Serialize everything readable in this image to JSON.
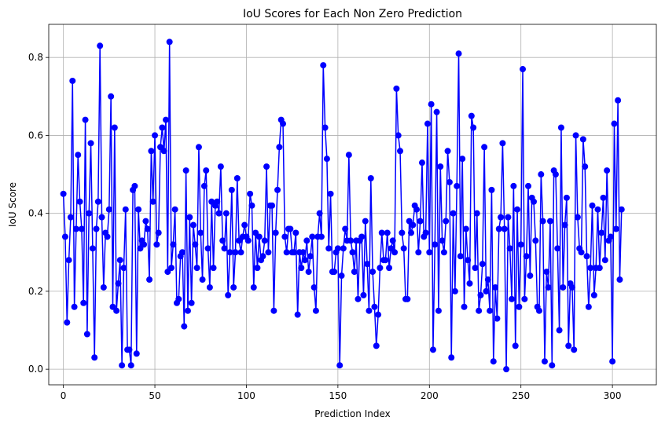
{
  "chart_data": {
    "type": "line",
    "title": "IoU Scores for Each Non Zero Prediction",
    "xlabel": "Prediction Index",
    "ylabel": "IoU Score",
    "xlim": [
      -8,
      324
    ],
    "ylim": [
      -0.04,
      0.885
    ],
    "xticks": [
      0,
      50,
      100,
      150,
      200,
      250,
      300
    ],
    "xtick_labels": [
      "0",
      "50",
      "100",
      "150",
      "200",
      "250",
      "300"
    ],
    "yticks": [
      0.0,
      0.2,
      0.4,
      0.6,
      0.8
    ],
    "ytick_labels": [
      "0.0",
      "0.2",
      "0.4",
      "0.6",
      "0.8"
    ],
    "grid": true,
    "marker": "circle",
    "color": "#0000ff",
    "series": [
      {
        "x_start": 0,
        "values": [
          0.45,
          0.34,
          0.12,
          0.28,
          0.39,
          0.74,
          0.16,
          0.36,
          0.55,
          0.43,
          0.36,
          0.17,
          0.64,
          0.09,
          0.4,
          0.58,
          0.31,
          0.03,
          0.36,
          0.43,
          0.83,
          0.39,
          0.21,
          0.35,
          0.34,
          0.41,
          0.7,
          0.16,
          0.62,
          0.15,
          0.22,
          0.28,
          0.01,
          0.26,
          0.41,
          0.05,
          0.05,
          0.01,
          0.46,
          0.47,
          0.04,
          0.41,
          0.31,
          0.33,
          0.32,
          0.38,
          0.36,
          0.23,
          0.56,
          0.43,
          0.6,
          0.32,
          0.35,
          0.57,
          0.62,
          0.56,
          0.64,
          0.25,
          0.84,
          0.26,
          0.32,
          0.41,
          0.17,
          0.18,
          0.29,
          0.3,
          0.11,
          0.51,
          0.15,
          0.39,
          0.17,
          0.37,
          0.32,
          0.26,
          0.57,
          0.35,
          0.23,
          0.47,
          0.51,
          0.31,
          0.21,
          0.43,
          0.26,
          0.42,
          0.43,
          0.4,
          0.52,
          0.33,
          0.31,
          0.4,
          0.19,
          0.3,
          0.46,
          0.21,
          0.3,
          0.49,
          0.33,
          0.3,
          0.34,
          0.37,
          0.34,
          0.33,
          0.45,
          0.42,
          0.21,
          0.35,
          0.26,
          0.34,
          0.28,
          0.29,
          0.33,
          0.52,
          0.3,
          0.42,
          0.42,
          0.15,
          0.35,
          0.46,
          0.57,
          0.64,
          0.63,
          0.34,
          0.3,
          0.36,
          0.36,
          0.3,
          0.3,
          0.35,
          0.14,
          0.3,
          0.26,
          0.3,
          0.28,
          0.33,
          0.25,
          0.29,
          0.34,
          0.21,
          0.15,
          0.34,
          0.4,
          0.34,
          0.78,
          0.62,
          0.54,
          0.31,
          0.45,
          0.25,
          0.25,
          0.3,
          0.31,
          0.01,
          0.24,
          0.31,
          0.36,
          0.33,
          0.55,
          0.33,
          0.3,
          0.25,
          0.33,
          0.18,
          0.33,
          0.34,
          0.19,
          0.38,
          0.27,
          0.15,
          0.49,
          0.25,
          0.16,
          0.06,
          0.14,
          0.26,
          0.35,
          0.28,
          0.28,
          0.35,
          0.26,
          0.31,
          0.33,
          0.3,
          0.72,
          0.6,
          0.56,
          0.35,
          0.31,
          0.18,
          0.18,
          0.38,
          0.35,
          0.37,
          0.42,
          0.41,
          0.3,
          0.38,
          0.53,
          0.34,
          0.35,
          0.63,
          0.3,
          0.68,
          0.05,
          0.32,
          0.66,
          0.15,
          0.52,
          0.33,
          0.3,
          0.38,
          0.56,
          0.48,
          0.03,
          0.4,
          0.2,
          0.47,
          0.81,
          0.29,
          0.54,
          0.16,
          0.36,
          0.28,
          0.22,
          0.65,
          0.62,
          0.26,
          0.4,
          0.15,
          0.19,
          0.27,
          0.57,
          0.2,
          0.23,
          0.15,
          0.46,
          0.02,
          0.21,
          0.13,
          0.36,
          0.39,
          0.58,
          0.36,
          0.0,
          0.39,
          0.31,
          0.18,
          0.47,
          0.06,
          0.41,
          0.16,
          0.32,
          0.77,
          0.18,
          0.29,
          0.47,
          0.24,
          0.44,
          0.43,
          0.33,
          0.16,
          0.15,
          0.5,
          0.38,
          0.02,
          0.25,
          0.21,
          0.38,
          0.01,
          0.51,
          0.5,
          0.31,
          0.1,
          0.62,
          0.21,
          0.37,
          0.44,
          0.06,
          0.22,
          0.21,
          0.05,
          0.6,
          0.39,
          0.31,
          0.3,
          0.59,
          0.52,
          0.29,
          0.16,
          0.26,
          0.42,
          0.19,
          0.26,
          0.41,
          0.26,
          0.35,
          0.44,
          0.28,
          0.51,
          0.33,
          0.34,
          0.02,
          0.63,
          0.36,
          0.69,
          0.23,
          0.41
        ]
      }
    ]
  }
}
